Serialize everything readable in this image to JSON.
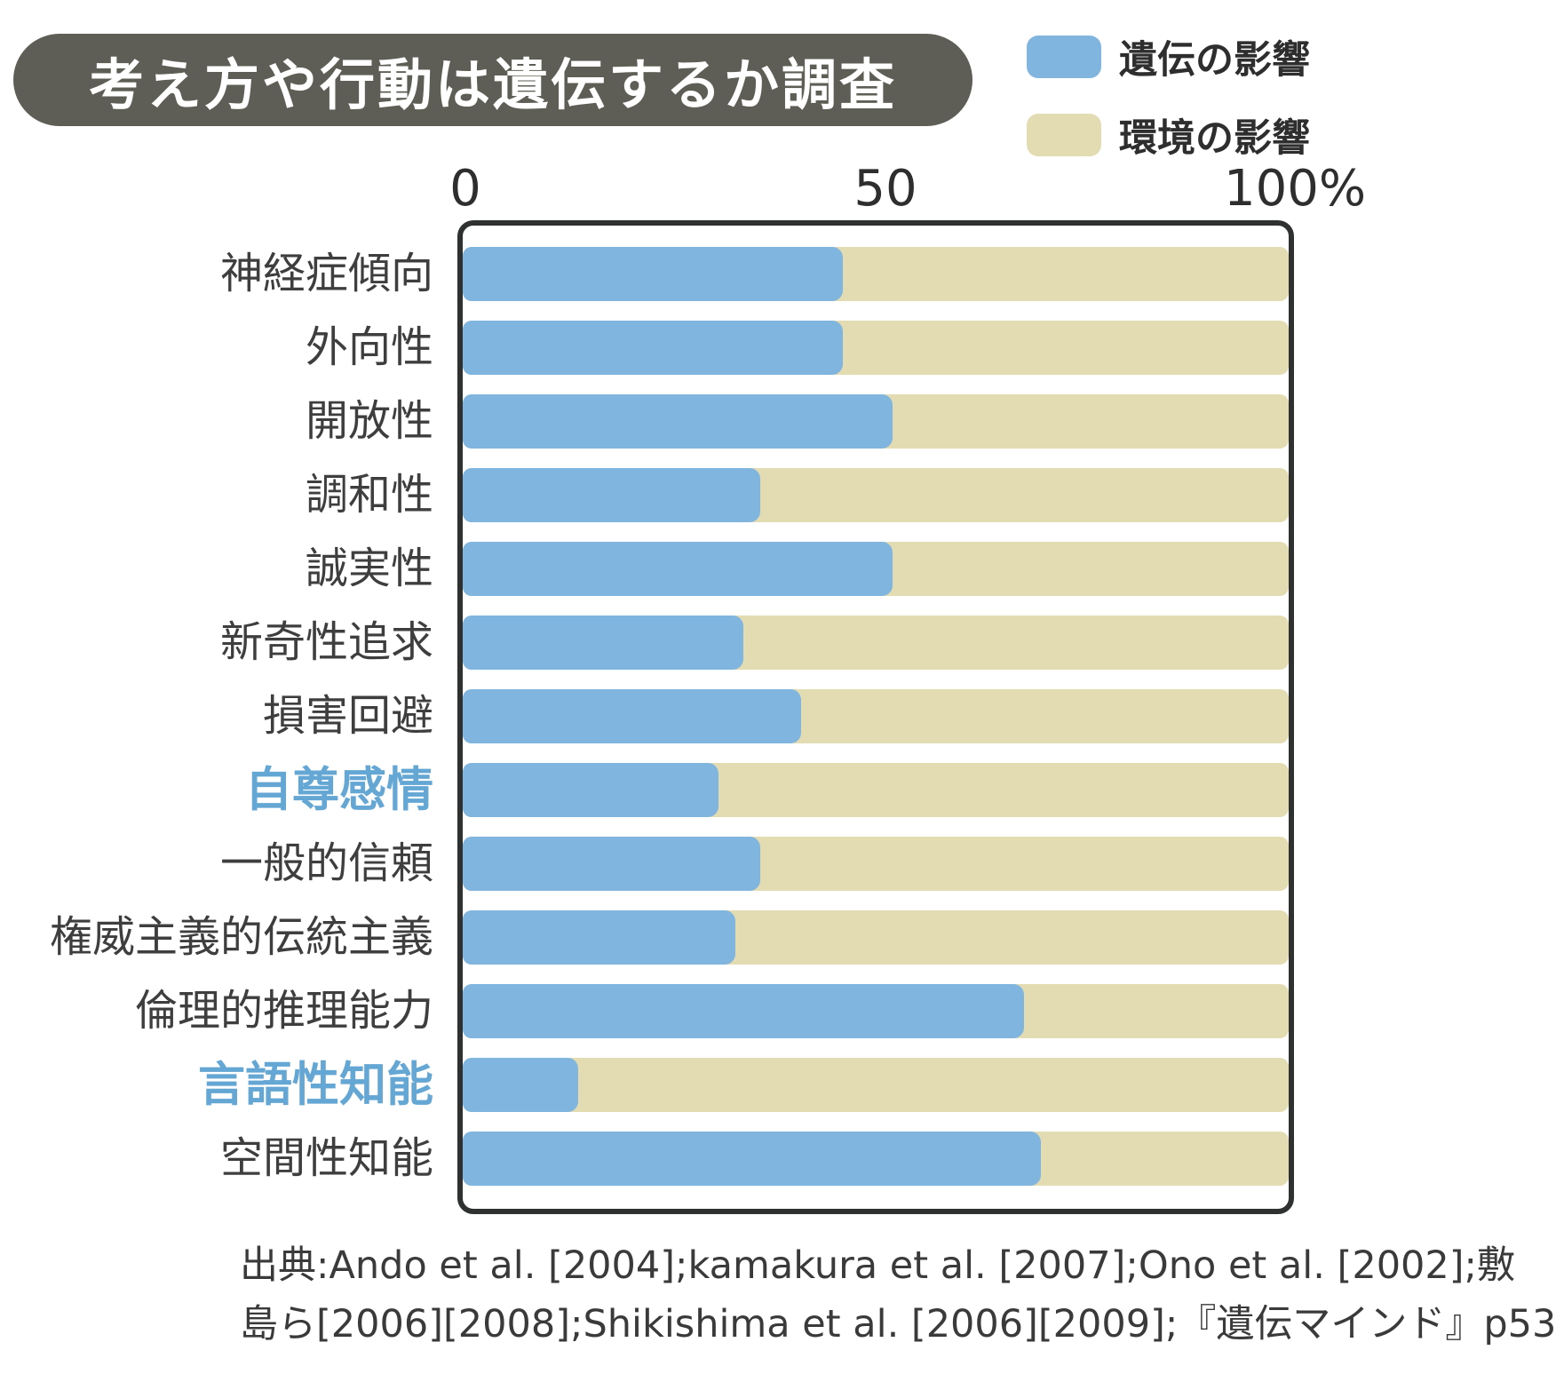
{
  "title": "考え方や行動は遺伝するか調査",
  "legend": [
    {
      "label": "遺伝の影響",
      "color": "#7FB5DE"
    },
    {
      "label": "環境の影響",
      "color": "#E3DCB3"
    }
  ],
  "axis": {
    "ticks": [
      "0",
      "50",
      "100%"
    ]
  },
  "chart_data": {
    "type": "bar",
    "orientation": "horizontal",
    "stacked": true,
    "xlim": [
      0,
      100
    ],
    "tick_values": [
      0,
      50,
      100
    ],
    "grid": false,
    "legend_position": "top-right",
    "categories": [
      "神経症傾向",
      "外向性",
      "開放性",
      "調和性",
      "誠実性",
      "新奇性追求",
      "損害回避",
      "自尊感情",
      "一般的信頼",
      "権威主義的伝統主義",
      "倫理的推理能力",
      "言語性知能",
      "空間性知能"
    ],
    "highlighted_categories": [
      "自尊感情",
      "言語性知能"
    ],
    "series": [
      {
        "name": "遺伝の影響",
        "color": "#7FB5DE",
        "values": [
          46,
          46,
          52,
          36,
          52,
          34,
          41,
          31,
          36,
          33,
          68,
          14,
          70
        ]
      },
      {
        "name": "環境の影響",
        "color": "#E3DCB3",
        "values": [
          54,
          54,
          48,
          64,
          48,
          66,
          59,
          69,
          64,
          67,
          32,
          86,
          30
        ]
      }
    ]
  },
  "source": {
    "line1": "出典:Ando et al. [2004];kamakura et al. [2007];Ono et al. [2002];敷",
    "line2": "島ら[2006][2008];Shikishima et al. [2006][2009];『遺伝マインド』p53"
  },
  "colors": {
    "badge_bg": "#5E5E56",
    "badge_text": "#FFFFFF",
    "heredity_blue": "#7FB5DE",
    "environment_beige": "#E3DCB3",
    "highlight_label": "#64A6D4",
    "label_dark": "#3E3E3E",
    "frame_border": "#2F3130"
  }
}
